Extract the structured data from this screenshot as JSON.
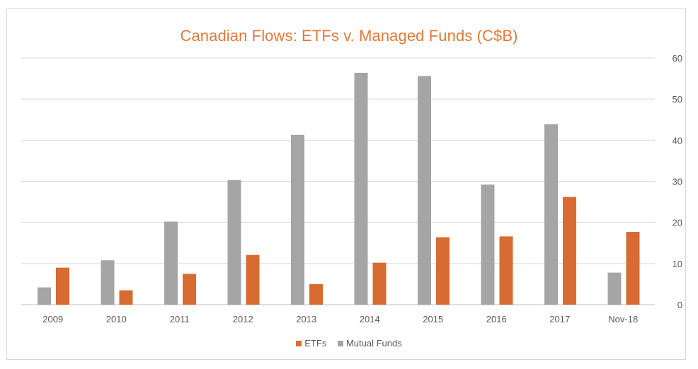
{
  "chart_data": {
    "type": "bar",
    "title": "Canadian Flows: ETFs v. Managed Funds (C$B)",
    "xlabel": "",
    "ylabel": "",
    "categories": [
      "2009",
      "2010",
      "2011",
      "2012",
      "2013",
      "2014",
      "2015",
      "2016",
      "2017",
      "Nov-18"
    ],
    "series": [
      {
        "name": "Mutual Funds",
        "values": [
          4.2,
          10.8,
          20.2,
          30.3,
          41.3,
          56.4,
          55.6,
          29.2,
          43.9,
          7.8
        ],
        "color": "#a5a5a5"
      },
      {
        "name": "ETFs",
        "values": [
          9.0,
          3.5,
          7.5,
          12.1,
          5.0,
          10.2,
          16.4,
          16.6,
          26.2,
          17.7
        ],
        "color": "#d86b32"
      }
    ],
    "ylim": [
      0,
      60
    ],
    "yticks": [
      0,
      10,
      20,
      30,
      40,
      50,
      60
    ],
    "y_axis_side": "right",
    "grid": true,
    "legend_position": "bottom"
  },
  "legend": [
    {
      "label": "ETFs",
      "color": "#d86b32"
    },
    {
      "label": "Mutual Funds",
      "color": "#a5a5a5"
    }
  ]
}
